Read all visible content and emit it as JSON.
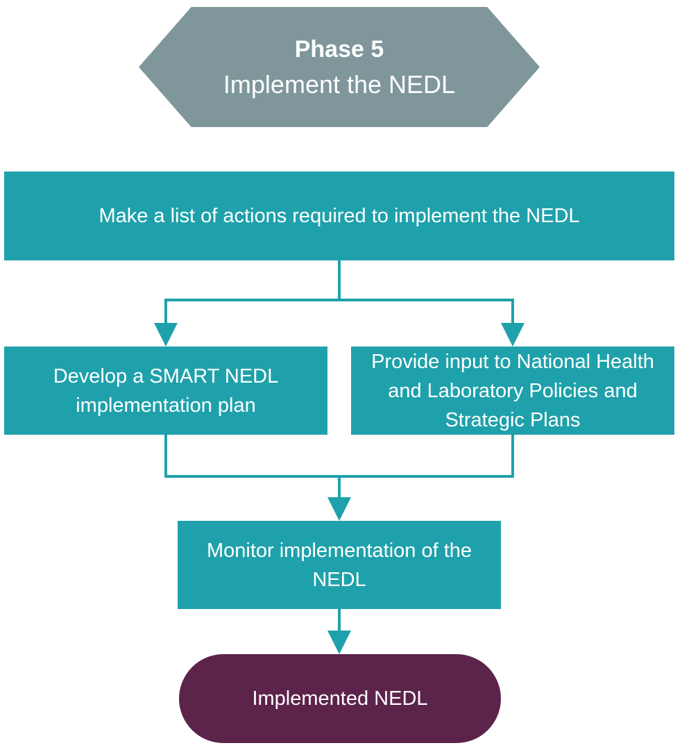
{
  "phase": {
    "title": "Phase 5",
    "subtitle": "Implement the NEDL"
  },
  "steps": {
    "list_actions": "Make a list of actions required to implement the NEDL",
    "smart_plan": "Develop a SMART NEDL implementation plan",
    "provide_input": "Provide input to National Health and Laboratory Policies and Strategic Plans",
    "monitor": "Monitor implementation of the NEDL"
  },
  "outcome": {
    "label": "Implemented NEDL"
  },
  "colors": {
    "phase_fill": "#7f979b",
    "step_fill": "#1fa1ab",
    "connector": "#1fa1ab",
    "outcome_fill": "#5c244a",
    "text": "#ffffff"
  }
}
